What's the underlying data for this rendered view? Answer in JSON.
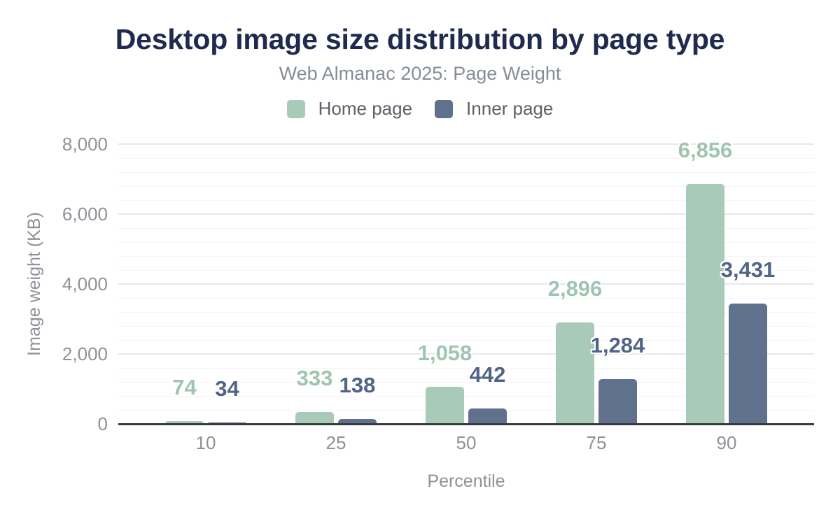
{
  "title": "Desktop image size distribution by page type",
  "subtitle": "Web Almanac 2025: Page Weight",
  "legend": [
    {
      "label": "Home page",
      "color": "#a8cab8"
    },
    {
      "label": "Inner page",
      "color": "#5f718d"
    }
  ],
  "colors": {
    "title": "#1f2b4e",
    "subtitle": "#878d96",
    "axis_text": "#8d9298",
    "legend_text": "#5b6168",
    "home_bar": "#a8cab8",
    "home_label": "#9fc5b1",
    "inner_bar": "#5f718d",
    "inner_label": "#4f6486",
    "major_gridline": "#e8e8ea",
    "minor_gridline": "#f4f4f6",
    "axis_line": "#3a3b3e",
    "background": "#ffffff"
  },
  "chart_data": {
    "type": "bar",
    "title": "Desktop image size distribution by page type",
    "subtitle": "Web Almanac 2025: Page Weight",
    "categories": [
      "10",
      "25",
      "50",
      "75",
      "90"
    ],
    "series": [
      {
        "name": "Home page",
        "color": "#a8cab8",
        "label_color": "#9fc5b1",
        "values": [
          74,
          333,
          1058,
          2896,
          6856
        ],
        "labels": [
          "74",
          "333",
          "1,058",
          "2,896",
          "6,856"
        ]
      },
      {
        "name": "Inner page",
        "color": "#5f718d",
        "label_color": "#4f6486",
        "values": [
          34,
          138,
          442,
          1284,
          3431
        ],
        "labels": [
          "34",
          "138",
          "442",
          "1,284",
          "3,431"
        ]
      }
    ],
    "xlabel": "Percentile",
    "ylabel": "Image weight (KB)",
    "ylim": [
      0,
      8000
    ],
    "ytick_interval": 2000,
    "minor_gridline_interval": 400,
    "yticks": [
      "0",
      "2,000",
      "4,000",
      "6,000",
      "8,000"
    ],
    "grid": true,
    "legend_position": "top",
    "data_labels": true
  }
}
